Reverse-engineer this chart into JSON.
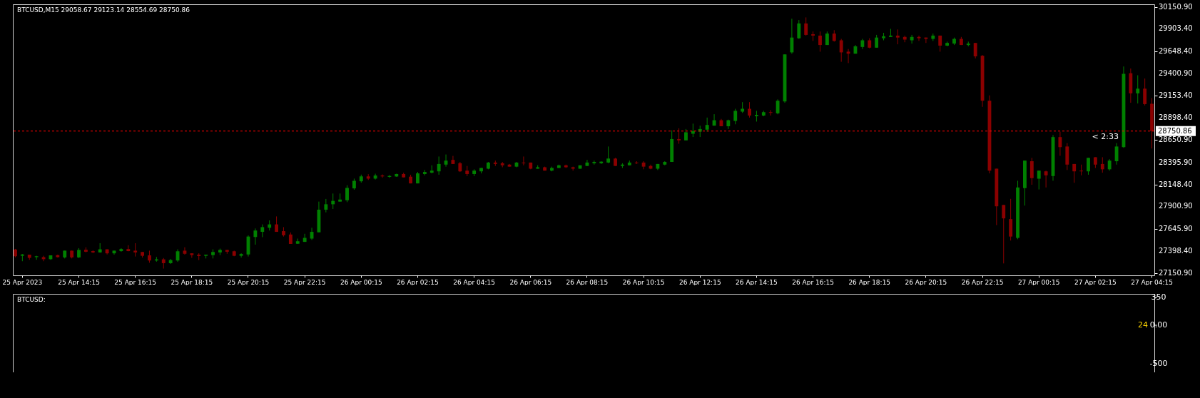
{
  "chart_data": [
    {
      "type": "candlestick",
      "title": "BTCUSD,M15 29058.67 29123.14 28554.69 28750.86",
      "categories": [
        null,
        "25 Apr 2023",
        null,
        null,
        null,
        null,
        null,
        null,
        null,
        "25 Apr 14:15",
        null,
        null,
        null,
        null,
        null,
        null,
        null,
        "25 Apr 16:15",
        null,
        null,
        null,
        null,
        null,
        null,
        null,
        "25 Apr 18:15",
        null,
        null,
        null,
        null,
        null,
        null,
        null,
        "25 Apr 20:15",
        null,
        null,
        null,
        null,
        null,
        null,
        null,
        "25 Apr 22:15",
        null,
        null,
        null,
        null,
        null,
        null,
        null,
        "26 Apr 00:15",
        null,
        null,
        null,
        null,
        null,
        null,
        null,
        "26 Apr 02:15",
        null,
        null,
        null,
        null,
        null,
        null,
        null,
        "26 Apr 04:15",
        null,
        null,
        null,
        null,
        null,
        null,
        null,
        "26 Apr 06:15",
        null,
        null,
        null,
        null,
        null,
        null,
        null,
        "26 Apr 08:15",
        null,
        null,
        null,
        null,
        null,
        null,
        null,
        "26 Apr 10:15",
        null,
        null,
        null,
        null,
        null,
        null,
        null,
        "26 Apr 12:15",
        null,
        null,
        null,
        null,
        null,
        null,
        null,
        "26 Apr 14:15",
        null,
        null,
        null,
        null,
        null,
        null,
        null,
        "26 Apr 16:15",
        null,
        null,
        null,
        null,
        null,
        null,
        null,
        "26 Apr 18:15",
        null,
        null,
        null,
        null,
        null,
        null,
        null,
        "26 Apr 20:15",
        null,
        null,
        null,
        null,
        null,
        null,
        null,
        "26 Apr 22:15",
        null,
        null,
        null,
        null,
        null,
        null,
        null,
        "27 Apr 00:15",
        null,
        null,
        null,
        null,
        null,
        null,
        null,
        "27 Apr 02:15",
        null,
        null,
        null,
        null,
        null,
        null,
        null,
        "27 Apr 04:15"
      ],
      "ohlc": [
        [
          27416,
          27423,
          27327,
          27340
        ],
        [
          27345,
          27365,
          27284,
          27360
        ],
        [
          27358,
          27358,
          27300,
          27322
        ],
        [
          27330,
          27345,
          27300,
          27340
        ],
        [
          27330,
          27345,
          27284,
          27307
        ],
        [
          27307,
          27350,
          27300,
          27350
        ],
        [
          27353,
          27358,
          27325,
          27330
        ],
        [
          27327,
          27403,
          27315,
          27403
        ],
        [
          27403,
          27403,
          27315,
          27327
        ],
        [
          27327,
          27431,
          27320,
          27411
        ],
        [
          27413,
          27441,
          27383,
          27391
        ],
        [
          27398,
          27406,
          27375,
          27383
        ],
        [
          27383,
          27487,
          27380,
          27418
        ],
        [
          27418,
          27418,
          27360,
          27373
        ],
        [
          27373,
          27403,
          27358,
          27403
        ],
        [
          27398,
          27431,
          27391,
          27421
        ],
        [
          27421,
          27464,
          27396,
          27398
        ],
        [
          27403,
          27487,
          27337,
          27383
        ],
        [
          27388,
          27388,
          27325,
          27345
        ],
        [
          27350,
          27403,
          27267,
          27292
        ],
        [
          27292,
          27332,
          27279,
          27305
        ],
        [
          27305,
          27320,
          27201,
          27262
        ],
        [
          27262,
          27310,
          27254,
          27297
        ],
        [
          27292,
          27418,
          27277,
          27396
        ],
        [
          27403,
          27441,
          27358,
          27368
        ],
        [
          27373,
          27373,
          27322,
          27353
        ],
        [
          27358,
          27373,
          27297,
          27343
        ],
        [
          27345,
          27358,
          27315,
          27358
        ],
        [
          27353,
          27418,
          27315,
          27388
        ],
        [
          27383,
          27426,
          27353,
          27411
        ],
        [
          27411,
          27411,
          27368,
          27391
        ],
        [
          27396,
          27403,
          27340,
          27345
        ],
        [
          27345,
          27373,
          27325,
          27365
        ],
        [
          27360,
          27575,
          27337,
          27562
        ],
        [
          27557,
          27653,
          27471,
          27630
        ],
        [
          27615,
          27699,
          27555,
          27668
        ],
        [
          27661,
          27744,
          27630,
          27699
        ],
        [
          27699,
          27789,
          27615,
          27615
        ],
        [
          27623,
          27668,
          27562,
          27577
        ],
        [
          27585,
          27608,
          27479,
          27479
        ],
        [
          27481,
          27539,
          27479,
          27509
        ],
        [
          27502,
          27593,
          27502,
          27547
        ],
        [
          27539,
          27661,
          27524,
          27615
        ],
        [
          27610,
          27956,
          27610,
          27865
        ],
        [
          27865,
          27986,
          27835,
          27926
        ],
        [
          27926,
          28047,
          27873,
          27964
        ],
        [
          27956,
          28047,
          27956,
          27979
        ],
        [
          27971,
          28140,
          27950,
          28110
        ],
        [
          28105,
          28215,
          28090,
          28190
        ],
        [
          28185,
          28260,
          28170,
          28240
        ],
        [
          28240,
          28265,
          28200,
          28215
        ],
        [
          28215,
          28270,
          28205,
          28250
        ],
        [
          28250,
          28262,
          28225,
          28240
        ],
        [
          28235,
          28255,
          28225,
          28245
        ],
        [
          28239,
          28270,
          28235,
          28267
        ],
        [
          28267,
          28282,
          28229,
          28229
        ],
        [
          28237,
          28259,
          28161,
          28161
        ],
        [
          28161,
          28290,
          28161,
          28274
        ],
        [
          28267,
          28312,
          28252,
          28290
        ],
        [
          28282,
          28365,
          28274,
          28305
        ],
        [
          28297,
          28464,
          28259,
          28380
        ],
        [
          28373,
          28487,
          28350,
          28418
        ],
        [
          28426,
          28471,
          28380,
          28380
        ],
        [
          28388,
          28403,
          28290,
          28297
        ],
        [
          28305,
          28358,
          28244,
          28267
        ],
        [
          28267,
          28320,
          28244,
          28305
        ],
        [
          28297,
          28335,
          28274,
          28335
        ],
        [
          28327,
          28403,
          28320,
          28396
        ],
        [
          28396,
          28418,
          28358,
          28380
        ],
        [
          28388,
          28403,
          28343,
          28365
        ],
        [
          28373,
          28380,
          28350,
          28350
        ],
        [
          28350,
          28403,
          28343,
          28396
        ],
        [
          28396,
          28464,
          28365,
          28388
        ],
        [
          28396,
          28396,
          28320,
          28327
        ],
        [
          28327,
          28365,
          28327,
          28343
        ],
        [
          28343,
          28350,
          28305,
          28305
        ],
        [
          28305,
          28350,
          28297,
          28335
        ],
        [
          28335,
          28373,
          28335,
          28365
        ],
        [
          28365,
          28373,
          28335,
          28343
        ],
        [
          28343,
          28350,
          28305,
          28327
        ],
        [
          28327,
          28365,
          28327,
          28365
        ],
        [
          28358,
          28426,
          28358,
          28396
        ],
        [
          28388,
          28418,
          28373,
          28403
        ],
        [
          28388,
          28411,
          28380,
          28406
        ],
        [
          28396,
          28577,
          28388,
          28441
        ],
        [
          28441,
          28449,
          28358,
          28358
        ],
        [
          28358,
          28388,
          28335,
          28373
        ],
        [
          28365,
          28418,
          28365,
          28396
        ],
        [
          28396,
          28411,
          28380,
          28388
        ],
        [
          28396,
          28411,
          28320,
          28350
        ],
        [
          28358,
          28373,
          28320,
          28327
        ],
        [
          28327,
          28380,
          28312,
          28380
        ],
        [
          28373,
          28411,
          28365,
          28403
        ],
        [
          28403,
          28759,
          28403,
          28661
        ],
        [
          28661,
          28782,
          28608,
          28646
        ],
        [
          28646,
          28774,
          28646,
          28737
        ],
        [
          28721,
          28835,
          28684,
          28752
        ],
        [
          28744,
          28812,
          28684,
          28774
        ],
        [
          28767,
          28903,
          28744,
          28820
        ],
        [
          28812,
          28941,
          28812,
          28873
        ],
        [
          28873,
          28888,
          28805,
          28805
        ],
        [
          28805,
          28880,
          28774,
          28873
        ],
        [
          28865,
          29002,
          28827,
          28979
        ],
        [
          28971,
          29077,
          28956,
          29002
        ],
        [
          29002,
          29077,
          28903,
          28926
        ],
        [
          28918,
          28979,
          28858,
          28933
        ],
        [
          28926,
          28979,
          28918,
          28964
        ],
        [
          28964,
          28987,
          28926,
          28956
        ],
        [
          28951,
          29108,
          28940,
          29093
        ],
        [
          29085,
          29615,
          29070,
          29615
        ],
        [
          29638,
          30017,
          29623,
          29805
        ],
        [
          29797,
          30002,
          29790,
          29964
        ],
        [
          29964,
          30032,
          29827,
          29835
        ],
        [
          29843,
          29873,
          29767,
          29827
        ],
        [
          29827,
          29873,
          29646,
          29721
        ],
        [
          29721,
          29873,
          29721,
          29850
        ],
        [
          29850,
          29888,
          29759,
          29767
        ],
        [
          29774,
          29790,
          29532,
          29638
        ],
        [
          29646,
          29676,
          29517,
          29623
        ],
        [
          29623,
          29721,
          29623,
          29706
        ],
        [
          29699,
          29790,
          29676,
          29774
        ],
        [
          29774,
          29797,
          29684,
          29691
        ],
        [
          29691,
          29835,
          29691,
          29805
        ],
        [
          29797,
          29858,
          29774,
          29820
        ],
        [
          29812,
          29903,
          29812,
          29827
        ],
        [
          29827,
          29896,
          29729,
          29805
        ],
        [
          29812,
          29827,
          29752,
          29782
        ],
        [
          29774,
          29835,
          29737,
          29812
        ],
        [
          29812,
          29827,
          29767,
          29797
        ],
        [
          29805,
          29805,
          29744,
          29790
        ],
        [
          29790,
          29850,
          29767,
          29827
        ],
        [
          29827,
          29827,
          29646,
          29714
        ],
        [
          29714,
          29759,
          29706,
          29744
        ],
        [
          29737,
          29805,
          29721,
          29790
        ],
        [
          29790,
          29812,
          29721,
          29721
        ],
        [
          29721,
          29759,
          29706,
          29737
        ],
        [
          29744,
          29744,
          29570,
          29593
        ],
        [
          29600,
          29608,
          29024,
          29093
        ],
        [
          29093,
          29153,
          28274,
          28305
        ],
        [
          28327,
          28327,
          27691,
          27903
        ],
        [
          27918,
          27918,
          27259,
          27767
        ],
        [
          27759,
          27987,
          27517,
          27562
        ],
        [
          27547,
          28191,
          27532,
          28115
        ],
        [
          28108,
          28418,
          27911,
          28418
        ],
        [
          28411,
          28449,
          28146,
          28221
        ],
        [
          28214,
          28305,
          28093,
          28305
        ],
        [
          28297,
          28305,
          28115,
          28252
        ],
        [
          28244,
          28706,
          28191,
          28683
        ],
        [
          28683,
          28744,
          28472,
          28570
        ],
        [
          28577,
          28615,
          28312,
          28373
        ],
        [
          28380,
          28380,
          28168,
          28297
        ],
        [
          28305,
          28373,
          28252,
          28297
        ],
        [
          28297,
          28449,
          28259,
          28449
        ],
        [
          28456,
          28456,
          28335,
          28373
        ],
        [
          28380,
          28456,
          28282,
          28320
        ],
        [
          28320,
          28434,
          28305,
          28418
        ],
        [
          28411,
          28615,
          28373,
          28577
        ],
        [
          28570,
          29479,
          28562,
          29396
        ],
        [
          29403,
          29456,
          29070,
          29176
        ],
        [
          29176,
          29380,
          29062,
          29229
        ],
        [
          29229,
          29343,
          29040,
          29055
        ],
        [
          29058.67,
          29123.14,
          28554.69,
          28750.86
        ]
      ],
      "colors": [
        "#8b0000",
        "#008000",
        "#8b0000",
        "#008000",
        "#8b0000",
        "#008000",
        "#8b0000",
        "#008000",
        "#8b0000",
        "#008000",
        "#8b0000",
        "#8b0000",
        "#008000",
        "#8b0000",
        "#008000",
        "#008000",
        "#8b0000",
        "#8b0000",
        "#8b0000",
        "#8b0000",
        "#008000",
        "#8b0000",
        "#008000",
        "#008000",
        "#8b0000",
        "#8b0000",
        "#8b0000",
        "#008000",
        "#008000",
        "#008000",
        "#8b0000",
        "#8b0000",
        "#008000",
        "#008000",
        "#008000",
        "#008000",
        "#008000",
        "#8b0000",
        "#8b0000",
        "#8b0000",
        "#008000",
        "#008000",
        "#008000",
        "#008000",
        "#008000",
        "#008000",
        "#008000",
        "#008000",
        "#008000",
        "#008000",
        "#8b0000",
        "#008000",
        "#8b0000",
        "#008000",
        "#008000",
        "#8b0000",
        "#8b0000",
        "#008000",
        "#008000",
        "#008000",
        "#008000",
        "#008000",
        "#8b0000",
        "#8b0000",
        "#8b0000",
        "#008000",
        "#008000",
        "#008000",
        "#8b0000",
        "#8b0000",
        "#8b0000",
        "#008000",
        "#8b0000",
        "#8b0000",
        "#008000",
        "#8b0000",
        "#008000",
        "#008000",
        "#8b0000",
        "#8b0000",
        "#008000",
        "#008000",
        "#008000",
        "#008000",
        "#008000",
        "#8b0000",
        "#008000",
        "#008000",
        "#8b0000",
        "#8b0000",
        "#8b0000",
        "#008000",
        "#008000",
        "#008000",
        "#8b0000",
        "#008000",
        "#008000",
        "#008000",
        "#008000",
        "#008000",
        "#8b0000",
        "#008000",
        "#008000",
        "#008000",
        "#8b0000",
        "#008000",
        "#008000",
        "#8b0000",
        "#008000",
        "#008000",
        "#008000",
        "#008000",
        "#8b0000",
        "#8b0000",
        "#8b0000",
        "#008000",
        "#8b0000",
        "#8b0000",
        "#8b0000",
        "#008000",
        "#008000",
        "#8b0000",
        "#008000",
        "#008000",
        "#008000",
        "#8b0000",
        "#8b0000",
        "#008000",
        "#8b0000",
        "#8b0000",
        "#008000",
        "#8b0000",
        "#008000",
        "#008000",
        "#8b0000",
        "#008000",
        "#8b0000",
        "#8b0000",
        "#8b0000",
        "#8b0000",
        "#8b0000",
        "#8b0000",
        "#008000",
        "#008000",
        "#8b0000",
        "#008000",
        "#8b0000",
        "#008000",
        "#8b0000",
        "#8b0000",
        "#8b0000",
        "#8b0000",
        "#008000",
        "#8b0000",
        "#8b0000",
        "#008000",
        "#008000",
        "#008000",
        "#8b0000",
        "#008000",
        "#8b0000",
        "#8b0000"
      ],
      "ylim": [
        27125,
        30180
      ],
      "yticks": [
        {
          "value": 30150.9,
          "label": "30150.90"
        },
        {
          "value": 29903.4,
          "label": "29903.40"
        },
        {
          "value": 29648.4,
          "label": "29648.40"
        },
        {
          "value": 29400.9,
          "label": "29400.90"
        },
        {
          "value": 29153.4,
          "label": "29153.40"
        },
        {
          "value": 28898.4,
          "label": "28898.40"
        },
        {
          "value": 28650.9,
          "label": "28650.90"
        },
        {
          "value": 28395.9,
          "label": "28395.90"
        },
        {
          "value": 28148.4,
          "label": "28148.40"
        },
        {
          "value": 27900.9,
          "label": "27900.90"
        },
        {
          "value": 27645.9,
          "label": "27645.90"
        },
        {
          "value": 27398.4,
          "label": "27398.40"
        },
        {
          "value": 27150.9,
          "label": "27150.90"
        }
      ],
      "ref_lines": [
        {
          "axis": "y",
          "value": 28750.86,
          "label": "28750.86",
          "color": "#ff0000",
          "line_style": "dashed"
        }
      ],
      "annotations": [
        "< 2:33"
      ],
      "grid": false
    },
    {
      "type": "other",
      "title": "BTCUSD:",
      "annotations": [
        "350",
        "0.00",
        "-500",
        "24"
      ]
    }
  ]
}
